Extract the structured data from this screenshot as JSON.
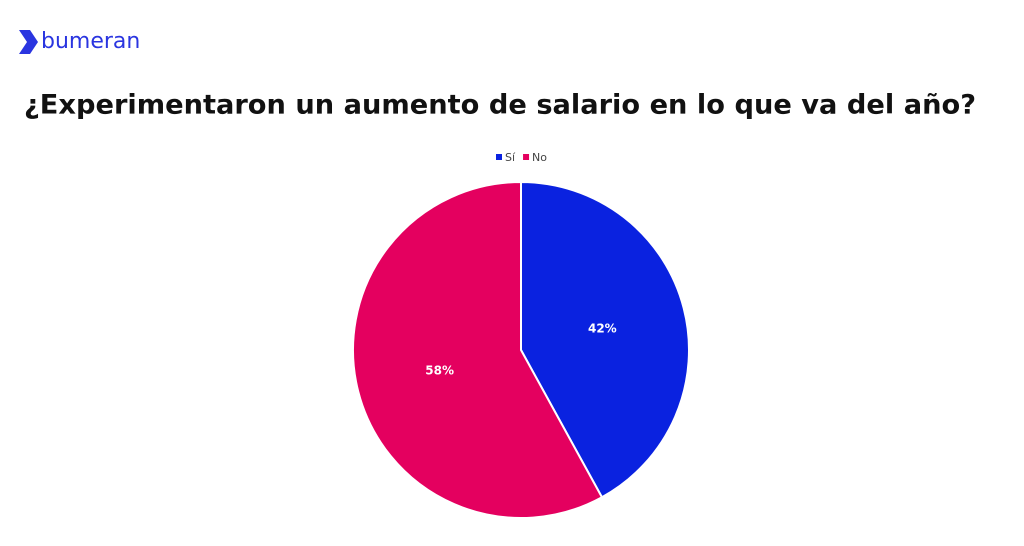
{
  "brand": "bumeran",
  "chart_data": {
    "type": "pie",
    "title": "¿Experimentaron un aumento de salario en lo que va del año?",
    "categories": [
      "Sí",
      "No"
    ],
    "values": [
      42,
      58
    ],
    "value_labels": [
      "42%",
      "58%"
    ],
    "colors": [
      "#0a22e0",
      "#e4005f"
    ],
    "legend": "top"
  }
}
